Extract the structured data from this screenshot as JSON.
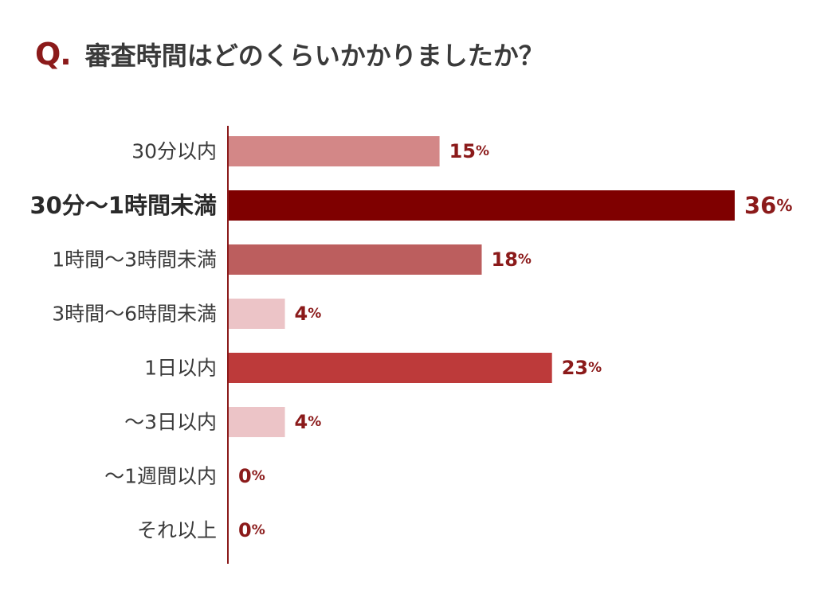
{
  "question": {
    "marker": "Q.",
    "text": "審査時間はどのくらいかかりましたか？"
  },
  "chart_data": {
    "type": "bar",
    "orientation": "horizontal",
    "categories": [
      "30分以内",
      "30分〜1時間未満",
      "1時間〜3時間未満",
      "3時間〜6時間未満",
      "1日以内",
      "〜3日以内",
      "〜1週間以内",
      "それ以上"
    ],
    "values": [
      15,
      36,
      18,
      4,
      23,
      4,
      0,
      0
    ],
    "unit": "%",
    "highlight_index": 1,
    "xlim": [
      0,
      36
    ],
    "grid": false,
    "legend": "none",
    "colors": [
      "#d38787",
      "#7f0000",
      "#bc5e5e",
      "#ecc4c7",
      "#bd3a3a",
      "#ecc4c7",
      "#ecc4c7",
      "#ecc4c7"
    ],
    "axis_color": "#8b1a1a",
    "label_color": "#8b1a1a"
  }
}
